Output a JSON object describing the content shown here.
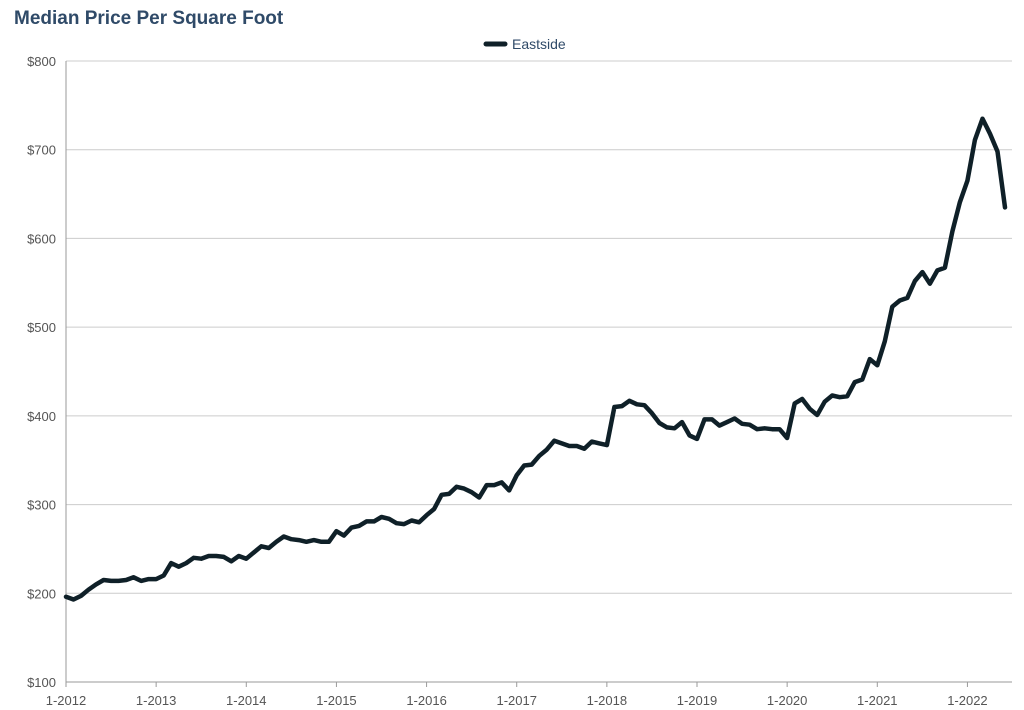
{
  "chart_data": {
    "type": "line",
    "title": "Median Price Per Square Foot",
    "xlabel": "",
    "ylabel": "",
    "ylim": [
      100,
      800
    ],
    "yticks": [
      "$100",
      "$200",
      "$300",
      "$400",
      "$500",
      "$600",
      "$700",
      "$800"
    ],
    "ytick_values": [
      100,
      200,
      300,
      400,
      500,
      600,
      700,
      800
    ],
    "xticks": [
      "1-2012",
      "1-2013",
      "1-2014",
      "1-2015",
      "1-2016",
      "1-2017",
      "1-2018",
      "1-2019",
      "1-2020",
      "1-2021",
      "1-2022"
    ],
    "grid": "horizontal",
    "legend_position": "top-center",
    "colors": {
      "series": "#0f2028",
      "grid": "#cccccc",
      "title": "#2f4a68",
      "axis_text": "#555555"
    },
    "series": [
      {
        "name": "Eastside",
        "x": [
          "2012-01",
          "2012-02",
          "2012-03",
          "2012-04",
          "2012-05",
          "2012-06",
          "2012-07",
          "2012-08",
          "2012-09",
          "2012-10",
          "2012-11",
          "2012-12",
          "2013-01",
          "2013-02",
          "2013-03",
          "2013-04",
          "2013-05",
          "2013-06",
          "2013-07",
          "2013-08",
          "2013-09",
          "2013-10",
          "2013-11",
          "2013-12",
          "2014-01",
          "2014-02",
          "2014-03",
          "2014-04",
          "2014-05",
          "2014-06",
          "2014-07",
          "2014-08",
          "2014-09",
          "2014-10",
          "2014-11",
          "2014-12",
          "2015-01",
          "2015-02",
          "2015-03",
          "2015-04",
          "2015-05",
          "2015-06",
          "2015-07",
          "2015-08",
          "2015-09",
          "2015-10",
          "2015-11",
          "2015-12",
          "2016-01",
          "2016-02",
          "2016-03",
          "2016-04",
          "2016-05",
          "2016-06",
          "2016-07",
          "2016-08",
          "2016-09",
          "2016-10",
          "2016-11",
          "2016-12",
          "2017-01",
          "2017-02",
          "2017-03",
          "2017-04",
          "2017-05",
          "2017-06",
          "2017-07",
          "2017-08",
          "2017-09",
          "2017-10",
          "2017-11",
          "2017-12",
          "2018-01",
          "2018-02",
          "2018-03",
          "2018-04",
          "2018-05",
          "2018-06",
          "2018-07",
          "2018-08",
          "2018-09",
          "2018-10",
          "2018-11",
          "2018-12",
          "2019-01",
          "2019-02",
          "2019-03",
          "2019-04",
          "2019-05",
          "2019-06",
          "2019-07",
          "2019-08",
          "2019-09",
          "2019-10",
          "2019-11",
          "2019-12",
          "2020-01",
          "2020-02",
          "2020-03",
          "2020-04",
          "2020-05",
          "2020-06",
          "2020-07",
          "2020-08",
          "2020-09",
          "2020-10",
          "2020-11",
          "2020-12",
          "2021-01",
          "2021-02",
          "2021-03",
          "2021-04",
          "2021-05",
          "2021-06",
          "2021-07",
          "2021-08",
          "2021-09",
          "2021-10",
          "2021-11",
          "2021-12",
          "2022-01",
          "2022-02",
          "2022-03",
          "2022-04",
          "2022-05",
          "2022-06"
        ],
        "values": [
          196,
          193,
          197,
          204,
          210,
          215,
          214,
          214,
          215,
          218,
          214,
          216,
          216,
          220,
          234,
          230,
          234,
          240,
          239,
          242,
          242,
          241,
          236,
          242,
          239,
          246,
          253,
          251,
          258,
          264,
          261,
          260,
          258,
          260,
          258,
          258,
          270,
          265,
          274,
          276,
          281,
          281,
          286,
          284,
          279,
          278,
          282,
          280,
          288,
          295,
          311,
          312,
          320,
          318,
          314,
          308,
          322,
          322,
          325,
          316,
          333,
          344,
          345,
          355,
          362,
          372,
          369,
          366,
          366,
          363,
          371,
          369,
          367,
          410,
          411,
          417,
          413,
          412,
          403,
          392,
          387,
          386,
          393,
          378,
          374,
          396,
          396,
          389,
          393,
          397,
          391,
          390,
          385,
          386,
          385,
          385,
          375,
          414,
          419,
          408,
          401,
          416,
          423,
          421,
          422,
          438,
          441,
          464,
          457,
          484,
          523,
          530,
          533,
          552,
          562,
          549,
          564,
          567,
          608,
          641,
          665,
          711,
          735,
          718,
          698,
          635
        ]
      }
    ]
  }
}
